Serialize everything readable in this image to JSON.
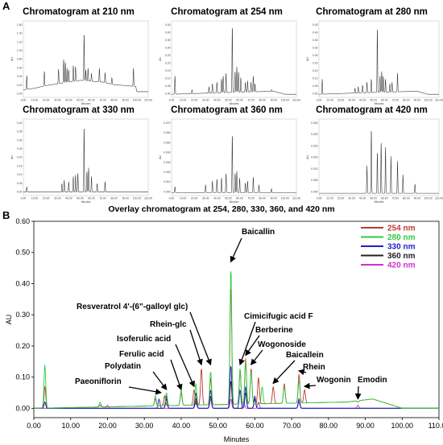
{
  "panel_a_label": "A",
  "panel_b_label": "B",
  "chart_data": [
    {
      "type": "line",
      "title": "Chromatogram at 210 nm",
      "xlabel": "Minutes",
      "ylabel": "AU",
      "xlim": [
        0,
        110
      ],
      "x_ticks": [
        "0.00",
        "10.00",
        "20.00",
        "30.00",
        "40.00",
        "50.00",
        "60.00",
        "70.00",
        "80.00",
        "90.00",
        "100.00",
        "110.00"
      ],
      "y_ticks": [
        "0.00",
        "0.20",
        "0.40",
        "0.60",
        "0.80",
        "1.00",
        "1.20",
        "1.40",
        "1.60"
      ],
      "ylim": [
        -0.05,
        1.7
      ],
      "baseline": [
        [
          0,
          0.12
        ],
        [
          10,
          0.16
        ],
        [
          20,
          0.22
        ],
        [
          30,
          0.26
        ],
        [
          40,
          0.3
        ],
        [
          50,
          0.34
        ],
        [
          60,
          0.32
        ],
        [
          70,
          0.3
        ],
        [
          80,
          0.24
        ],
        [
          90,
          0.22
        ],
        [
          99,
          0.2
        ],
        [
          100,
          0.08
        ],
        [
          110,
          0.08
        ]
      ],
      "peaks": [
        [
          3,
          0.45
        ],
        [
          18.5,
          0.55
        ],
        [
          31,
          0.6
        ],
        [
          35.5,
          0.82
        ],
        [
          37,
          0.76
        ],
        [
          38.5,
          0.62
        ],
        [
          40,
          0.58
        ],
        [
          44,
          0.68
        ],
        [
          46,
          0.66
        ],
        [
          53.5,
          1.42
        ],
        [
          55,
          0.58
        ],
        [
          57,
          0.62
        ],
        [
          60,
          0.5
        ],
        [
          67,
          0.62
        ],
        [
          72,
          0.52
        ],
        [
          78,
          0.4
        ],
        [
          97,
          0.62
        ]
      ]
    },
    {
      "type": "line",
      "title": "Chromatogram at 254 nm",
      "xlabel": "Minutes",
      "ylabel": "AU",
      "xlim": [
        0,
        110
      ],
      "x_ticks": [
        "0.00",
        "10.00",
        "20.00",
        "30.00",
        "40.00",
        "50.00",
        "60.00",
        "70.00",
        "80.00",
        "90.00",
        "100.00",
        "110.00"
      ],
      "y_ticks": [
        "0.00",
        "0.05",
        "0.10",
        "0.15",
        "0.20",
        "0.25",
        "0.30",
        "0.35",
        "0.40",
        "0.45"
      ],
      "ylim": [
        -0.02,
        0.48
      ],
      "baseline": [
        [
          0,
          0.0
        ],
        [
          40,
          0.01
        ],
        [
          90,
          0.02
        ],
        [
          100,
          0.0
        ],
        [
          110,
          0.0
        ]
      ],
      "peaks": [
        [
          3,
          0.12
        ],
        [
          18,
          0.03
        ],
        [
          33,
          0.05
        ],
        [
          36,
          0.07
        ],
        [
          40,
          0.08
        ],
        [
          44,
          0.1
        ],
        [
          45.5,
          0.12
        ],
        [
          48,
          0.14
        ],
        [
          53.5,
          0.45
        ],
        [
          56,
          0.15
        ],
        [
          57.5,
          0.18
        ],
        [
          59,
          0.15
        ],
        [
          61,
          0.11
        ],
        [
          65,
          0.08
        ],
        [
          67,
          0.09
        ],
        [
          70,
          0.08
        ],
        [
          72,
          0.12
        ],
        [
          73.5,
          0.07
        ],
        [
          88,
          0.03
        ]
      ]
    },
    {
      "type": "line",
      "title": "Chromatogram at 280 nm",
      "xlabel": "Minutes",
      "ylabel": "AU",
      "xlim": [
        0,
        110
      ],
      "x_ticks": [
        "0.00",
        "10.00",
        "20.00",
        "30.00",
        "40.00",
        "50.00",
        "60.00",
        "70.00",
        "80.00",
        "90.00",
        "100.00",
        "110.00"
      ],
      "y_ticks": [
        "0.00",
        "0.05",
        "0.10",
        "0.15",
        "0.20",
        "0.25",
        "0.30",
        "0.35",
        "0.40",
        "0.45"
      ],
      "ylim": [
        -0.02,
        0.48
      ],
      "baseline": [
        [
          0,
          0.0
        ],
        [
          40,
          0.01
        ],
        [
          90,
          0.02
        ],
        [
          100,
          0.0
        ],
        [
          110,
          0.0
        ]
      ],
      "peaks": [
        [
          3,
          0.1
        ],
        [
          33,
          0.04
        ],
        [
          36,
          0.05
        ],
        [
          40,
          0.06
        ],
        [
          44,
          0.08
        ],
        [
          48,
          0.1
        ],
        [
          53.5,
          0.44
        ],
        [
          56,
          0.12
        ],
        [
          57.5,
          0.15
        ],
        [
          59,
          0.12
        ],
        [
          61,
          0.1
        ],
        [
          65,
          0.07
        ],
        [
          67,
          0.08
        ],
        [
          72,
          0.14
        ],
        [
          88,
          0.02
        ]
      ]
    },
    {
      "type": "line",
      "title": "Chromatogram at 330 nm",
      "xlabel": "Minutes",
      "ylabel": "AU",
      "xlim": [
        0,
        110
      ],
      "x_ticks": [
        "0.00",
        "10.00",
        "20.00",
        "30.00",
        "40.00",
        "50.00",
        "60.00",
        "70.00",
        "80.00",
        "90.00",
        "100.00",
        "110.00"
      ],
      "y_ticks": [
        "0.00",
        "0.05",
        "0.10",
        "0.15",
        "0.20",
        "0.25",
        "0.30",
        "0.35",
        "0.40"
      ],
      "ylim": [
        -0.02,
        0.42
      ],
      "baseline": [
        [
          0,
          0.0
        ],
        [
          110,
          0.0
        ]
      ],
      "peaks": [
        [
          3,
          0.03
        ],
        [
          34,
          0.05
        ],
        [
          36,
          0.07
        ],
        [
          40,
          0.06
        ],
        [
          44,
          0.09
        ],
        [
          46,
          0.1
        ],
        [
          48,
          0.11
        ],
        [
          53.5,
          0.38
        ],
        [
          56,
          0.12
        ],
        [
          57.5,
          0.14
        ],
        [
          60,
          0.09
        ],
        [
          65,
          0.05
        ],
        [
          72,
          0.06
        ]
      ]
    },
    {
      "type": "line",
      "title": "Chromatogram at 360 nm",
      "xlabel": "Minutes",
      "ylabel": "AU",
      "xlim": [
        0,
        110
      ],
      "x_ticks": [
        "0.00",
        "10.00",
        "20.00",
        "30.00",
        "40.00",
        "50.00",
        "60.00",
        "70.00",
        "80.00",
        "90.00",
        "100.00",
        "110.00"
      ],
      "y_ticks": [
        "0.000",
        "0.010",
        "0.020",
        "0.030",
        "0.040",
        "0.050",
        "0.060",
        "0.070"
      ],
      "ylim": [
        -0.003,
        0.075
      ],
      "baseline": [
        [
          0,
          0.0
        ],
        [
          110,
          0.0
        ]
      ],
      "peaks": [
        [
          3,
          0.006
        ],
        [
          30,
          0.008
        ],
        [
          36,
          0.012
        ],
        [
          40,
          0.014
        ],
        [
          44,
          0.015
        ],
        [
          48,
          0.02
        ],
        [
          53.5,
          0.06
        ],
        [
          56,
          0.02
        ],
        [
          57.5,
          0.022
        ],
        [
          60,
          0.015
        ],
        [
          65,
          0.01
        ],
        [
          67,
          0.012
        ],
        [
          72,
          0.016
        ],
        [
          77,
          0.008
        ],
        [
          88,
          0.004
        ]
      ]
    },
    {
      "type": "line",
      "title": "Chromatogram at 420 nm",
      "xlabel": "Minutes",
      "ylabel": "AU",
      "xlim": [
        0,
        110
      ],
      "x_ticks": [
        "0.00",
        "10.00",
        "20.00",
        "30.00",
        "40.00",
        "50.00",
        "60.00",
        "70.00",
        "80.00",
        "90.00",
        "100.00",
        "110.00"
      ],
      "y_ticks": [
        "0.000",
        "0.005",
        "0.010",
        "0.015",
        "0.020",
        "0.025",
        "0.030"
      ],
      "ylim": [
        -0.001,
        0.032
      ],
      "baseline": [
        [
          0,
          0.0
        ],
        [
          110,
          0.0
        ]
      ],
      "peaks": [
        [
          44,
          0.012
        ],
        [
          48,
          0.028
        ],
        [
          53.5,
          0.018
        ],
        [
          57,
          0.022
        ],
        [
          61,
          0.02
        ],
        [
          66,
          0.016
        ],
        [
          72,
          0.014
        ],
        [
          77,
          0.008
        ],
        [
          88,
          0.004
        ]
      ]
    },
    {
      "type": "line",
      "title": "Overlay chromatogram at 254, 280, 330, 360, and 420 nm",
      "xlabel": "Minutes",
      "ylabel": "AU",
      "xlim": [
        0,
        110
      ],
      "ylim": [
        -0.03,
        0.6
      ],
      "x_ticks": [
        "0.00",
        "10.00",
        "20.00",
        "30.00",
        "40.00",
        "50.00",
        "60.00",
        "70.00",
        "80.00",
        "90.00",
        "100.00",
        "110.00"
      ],
      "y_ticks": [
        "0.00",
        "0.10",
        "0.20",
        "0.30",
        "0.40",
        "0.50",
        "0.60"
      ],
      "legend_position": "top-right",
      "series": [
        {
          "name": "254 nm",
          "color": "#c0392b",
          "baseline": [
            [
              0,
              0.0
            ],
            [
              85,
              0.02
            ],
            [
              92,
              0.03
            ],
            [
              100,
              0.0
            ],
            [
              110,
              0.0
            ]
          ],
          "peaks": [
            [
              3,
              0.07
            ],
            [
              18,
              0.01
            ],
            [
              33,
              0.03
            ],
            [
              35.5,
              0.04
            ],
            [
              40,
              0.05
            ],
            [
              43.5,
              0.06
            ],
            [
              45.5,
              0.13
            ],
            [
              48,
              0.1
            ],
            [
              53.5,
              0.4
            ],
            [
              56,
              0.12
            ],
            [
              57.5,
              0.16
            ],
            [
              59,
              0.13
            ],
            [
              61,
              0.1
            ],
            [
              65,
              0.07
            ],
            [
              68,
              0.08
            ],
            [
              72,
              0.11
            ],
            [
              73.5,
              0.06
            ],
            [
              88,
              0.02
            ]
          ]
        },
        {
          "name": "280 nm",
          "color": "#2ecc40",
          "baseline": [
            [
              0,
              0.0
            ],
            [
              85,
              0.02
            ],
            [
              92,
              0.03
            ],
            [
              100,
              0.0
            ],
            [
              110,
              0.0
            ]
          ],
          "peaks": [
            [
              3,
              0.14
            ],
            [
              18,
              0.02
            ],
            [
              33,
              0.04
            ],
            [
              36,
              0.05
            ],
            [
              40,
              0.06
            ],
            [
              44,
              0.08
            ],
            [
              48,
              0.12
            ],
            [
              53.5,
              0.46
            ],
            [
              56,
              0.13
            ],
            [
              57.5,
              0.15
            ],
            [
              59,
              0.12
            ],
            [
              62,
              0.07
            ],
            [
              68,
              0.07
            ],
            [
              72,
              0.09
            ],
            [
              88,
              0.02
            ]
          ]
        },
        {
          "name": "330 nm",
          "color": "#1f1fcc",
          "baseline": [
            [
              0,
              0.0
            ],
            [
              110,
              0.0
            ]
          ],
          "peaks": [
            [
              3,
              0.02
            ],
            [
              34,
              0.03
            ],
            [
              36,
              0.04
            ],
            [
              44,
              0.05
            ],
            [
              48,
              0.06
            ],
            [
              53.5,
              0.14
            ],
            [
              56,
              0.06
            ],
            [
              57.5,
              0.07
            ],
            [
              60,
              0.04
            ],
            [
              72,
              0.03
            ]
          ]
        },
        {
          "name": "360 nm",
          "color": "#222222",
          "baseline": [
            [
              0,
              0.0
            ],
            [
              110,
              0.0
            ]
          ],
          "peaks": [
            [
              3,
              0.02
            ],
            [
              36,
              0.03
            ],
            [
              44,
              0.03
            ],
            [
              48,
              0.04
            ],
            [
              53.5,
              0.09
            ],
            [
              57.5,
              0.05
            ],
            [
              60,
              0.03
            ],
            [
              72,
              0.03
            ]
          ]
        },
        {
          "name": "420 nm",
          "color": "#cc33cc",
          "baseline": [
            [
              0,
              0.0
            ],
            [
              110,
              0.0
            ]
          ],
          "peaks": [
            [
              20,
              0.01
            ],
            [
              44,
              0.02
            ],
            [
              48,
              0.03
            ],
            [
              53.5,
              0.03
            ],
            [
              57,
              0.02
            ],
            [
              61,
              0.02
            ],
            [
              72,
              0.02
            ],
            [
              88,
              0.01
            ]
          ]
        }
      ],
      "annotations": [
        {
          "label": "Baicallin",
          "x": 53.5,
          "y": 0.46
        },
        {
          "label": "Resveratrol 4'-(6\"-galloyl glc)",
          "x": 48,
          "y": 0.13
        },
        {
          "label": "Rhein-glc",
          "x": 45.5,
          "y": 0.13
        },
        {
          "label": "Isoferulic acid",
          "x": 43.5,
          "y": 0.06
        },
        {
          "label": "Ferulic acid",
          "x": 40,
          "y": 0.05
        },
        {
          "label": "Polydatin",
          "x": 36,
          "y": 0.05
        },
        {
          "label": "Paeoniflorin",
          "x": 34.5,
          "y": 0.04
        },
        {
          "label": "Cimicifugic acid F",
          "x": 56,
          "y": 0.13
        },
        {
          "label": "Berberine",
          "x": 57.5,
          "y": 0.16
        },
        {
          "label": "Wogonoside",
          "x": 59,
          "y": 0.13
        },
        {
          "label": "Baicallein",
          "x": 65,
          "y": 0.07
        },
        {
          "label": "Rhein",
          "x": 72,
          "y": 0.11
        },
        {
          "label": "Wogonin",
          "x": 73.5,
          "y": 0.06
        },
        {
          "label": "Emodin",
          "x": 88,
          "y": 0.02
        }
      ]
    }
  ]
}
